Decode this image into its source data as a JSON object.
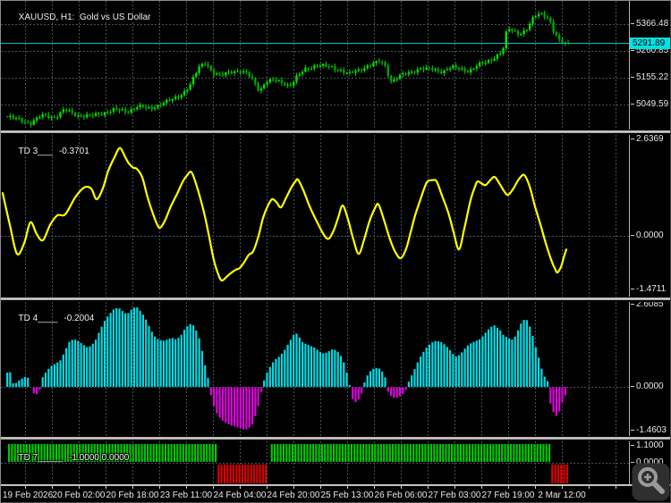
{
  "price_panel": {
    "title": "XAUUSD, H1:  Gold vs US Dollar",
    "current_price": "5291.89"
  },
  "indicators": {
    "td3": {
      "label": "TD 3___",
      "value": "-0.3701"
    },
    "td4": {
      "label": "TD 4____",
      "value": "-0.2004"
    },
    "td7": {
      "label": "TD 7_____",
      "value": "-1.0000 0.0000"
    }
  },
  "colors": {
    "candle_wick": "#00d800",
    "candle_up": "#00e000",
    "candle_down": "#00a400",
    "osc_line": "#ffff00",
    "hist_up": "#00dce4",
    "hist_down": "#e100e1",
    "sig_up": "#00c800",
    "sig_down": "#de0000",
    "price_line": "#00bfbf",
    "current_price_bg": "#00e2e2",
    "scale_text": "#e8e8e8"
  },
  "chart_data": [
    {
      "type": "candlestick",
      "title": "XAUUSD, H1: Gold vs US Dollar",
      "ylabel": "price",
      "y_ticks": [
        5366.48,
        5260.85,
        5155.22,
        5049.59
      ],
      "current_price": 5291.89,
      "x_labels": [
        "19 Feb 2026",
        "20 Feb 02:00",
        "20 Feb 18:00",
        "23 Feb 11:00",
        "24 Feb 04:00",
        "24 Feb 20:00",
        "25 Feb 13:00",
        "26 Feb 06:00",
        "27 Feb 03:00",
        "27 Feb 19:00",
        "2 Mar 12:00"
      ],
      "x_unit": "px",
      "close_path": [
        [
          6,
          5001
        ],
        [
          20,
          4990
        ],
        [
          32,
          4976
        ],
        [
          45,
          5007
        ],
        [
          60,
          5000
        ],
        [
          70,
          5029
        ],
        [
          85,
          5007
        ],
        [
          100,
          5004
        ],
        [
          112,
          5015
        ],
        [
          125,
          5029
        ],
        [
          140,
          5022
        ],
        [
          152,
          5043
        ],
        [
          165,
          5032
        ],
        [
          178,
          5053
        ],
        [
          190,
          5067
        ],
        [
          200,
          5088
        ],
        [
          210,
          5124
        ],
        [
          220,
          5194
        ],
        [
          228,
          5219
        ],
        [
          235,
          5176
        ],
        [
          245,
          5162
        ],
        [
          255,
          5180
        ],
        [
          265,
          5183
        ],
        [
          275,
          5169
        ],
        [
          283,
          5134
        ],
        [
          288,
          5103
        ],
        [
          295,
          5141
        ],
        [
          305,
          5145
        ],
        [
          315,
          5134
        ],
        [
          322,
          5124
        ],
        [
          330,
          5159
        ],
        [
          340,
          5191
        ],
        [
          352,
          5205
        ],
        [
          365,
          5198
        ],
        [
          378,
          5187
        ],
        [
          388,
          5169
        ],
        [
          398,
          5183
        ],
        [
          410,
          5205
        ],
        [
          423,
          5219
        ],
        [
          430,
          5194
        ],
        [
          434,
          5141
        ],
        [
          445,
          5162
        ],
        [
          455,
          5173
        ],
        [
          468,
          5194
        ],
        [
          480,
          5187
        ],
        [
          492,
          5180
        ],
        [
          502,
          5198
        ],
        [
          512,
          5187
        ],
        [
          522,
          5183
        ],
        [
          532,
          5205
        ],
        [
          542,
          5215
        ],
        [
          552,
          5240
        ],
        [
          560,
          5264
        ],
        [
          565,
          5352
        ],
        [
          572,
          5335
        ],
        [
          580,
          5331
        ],
        [
          588,
          5352
        ],
        [
          595,
          5395
        ],
        [
          602,
          5409
        ],
        [
          607,
          5402
        ],
        [
          612,
          5388
        ],
        [
          617,
          5335
        ],
        [
          623,
          5300
        ],
        [
          628,
          5289
        ],
        [
          633,
          5291.89
        ]
      ]
    },
    {
      "type": "line",
      "name": "TD 3___",
      "last_value": -0.3701,
      "y_ticks": [
        2.6369,
        0.0,
        -1.4711
      ],
      "x_unit": "px",
      "points": [
        [
          2,
          1.17
        ],
        [
          10,
          0.3
        ],
        [
          18,
          -0.49
        ],
        [
          26,
          -0.2
        ],
        [
          33,
          0.37
        ],
        [
          40,
          0.05
        ],
        [
          47,
          -0.12
        ],
        [
          55,
          0.3
        ],
        [
          63,
          0.56
        ],
        [
          72,
          0.59
        ],
        [
          83,
          1.05
        ],
        [
          93,
          1.32
        ],
        [
          101,
          1.29
        ],
        [
          107,
          1.0
        ],
        [
          114,
          1.3
        ],
        [
          120,
          1.78
        ],
        [
          127,
          2.15
        ],
        [
          133,
          2.4
        ],
        [
          139,
          2.15
        ],
        [
          143,
          1.98
        ],
        [
          148,
          1.86
        ],
        [
          152,
          1.83
        ],
        [
          158,
          1.6
        ],
        [
          164,
          1.05
        ],
        [
          170,
          0.6
        ],
        [
          174,
          0.35
        ],
        [
          178,
          0.22
        ],
        [
          184,
          0.45
        ],
        [
          190,
          0.81
        ],
        [
          197,
          1.15
        ],
        [
          203,
          1.47
        ],
        [
          208,
          1.65
        ],
        [
          213,
          1.74
        ],
        [
          219,
          1.35
        ],
        [
          227,
          0.64
        ],
        [
          233,
          -0.05
        ],
        [
          238,
          -0.66
        ],
        [
          243,
          -1.05
        ],
        [
          247,
          -1.22
        ],
        [
          253,
          -1.1
        ],
        [
          258,
          -1.0
        ],
        [
          263,
          -0.92
        ],
        [
          267,
          -0.88
        ],
        [
          272,
          -0.72
        ],
        [
          277,
          -0.52
        ],
        [
          282,
          -0.42
        ],
        [
          288,
          0.0
        ],
        [
          293,
          0.49
        ],
        [
          298,
          0.8
        ],
        [
          303,
          1.0
        ],
        [
          308,
          0.92
        ],
        [
          313,
          0.78
        ],
        [
          319,
          1.05
        ],
        [
          325,
          1.34
        ],
        [
          329,
          1.48
        ],
        [
          332,
          1.54
        ],
        [
          338,
          1.25
        ],
        [
          345,
          0.81
        ],
        [
          352,
          0.45
        ],
        [
          360,
          0.07
        ],
        [
          366,
          -0.08
        ],
        [
          372,
          0.15
        ],
        [
          377,
          0.5
        ],
        [
          382,
          0.83
        ],
        [
          388,
          0.45
        ],
        [
          394,
          -0.1
        ],
        [
          400,
          -0.49
        ],
        [
          406,
          -0.1
        ],
        [
          412,
          0.4
        ],
        [
          418,
          0.75
        ],
        [
          422,
          0.86
        ],
        [
          428,
          0.45
        ],
        [
          435,
          -0.1
        ],
        [
          441,
          -0.45
        ],
        [
          447,
          -0.61
        ],
        [
          453,
          -0.35
        ],
        [
          458,
          0.1
        ],
        [
          463,
          0.56
        ],
        [
          469,
          1.0
        ],
        [
          474,
          1.35
        ],
        [
          477,
          1.49
        ],
        [
          482,
          1.52
        ],
        [
          487,
          1.49
        ],
        [
          493,
          1.1
        ],
        [
          500,
          0.64
        ],
        [
          506,
          0.1
        ],
        [
          512,
          -0.37
        ],
        [
          518,
          0.2
        ],
        [
          525,
          0.98
        ],
        [
          530,
          1.35
        ],
        [
          533,
          1.49
        ],
        [
          538,
          1.42
        ],
        [
          542,
          1.39
        ],
        [
          547,
          1.52
        ],
        [
          552,
          1.61
        ],
        [
          558,
          1.4
        ],
        [
          563,
          1.2
        ],
        [
          567,
          1.12
        ],
        [
          573,
          1.3
        ],
        [
          579,
          1.55
        ],
        [
          585,
          1.66
        ],
        [
          591,
          1.35
        ],
        [
          597,
          0.8
        ],
        [
          603,
          0.32
        ],
        [
          609,
          -0.2
        ],
        [
          615,
          -0.65
        ],
        [
          619,
          -0.88
        ],
        [
          622,
          -1.0
        ],
        [
          626,
          -0.85
        ],
        [
          629,
          -0.6
        ],
        [
          632,
          -0.37
        ]
      ]
    },
    {
      "type": "bar",
      "name": "TD 4____",
      "last_value": -0.2004,
      "y_ticks": [
        2.6085,
        0.0,
        -1.4603
      ],
      "x_unit": "px",
      "envelope": [
        [
          6,
          0.45
        ],
        [
          9,
          0.5
        ],
        [
          12,
          0.12
        ],
        [
          15,
          0.1
        ],
        [
          18,
          0.18
        ],
        [
          22,
          0.26
        ],
        [
          26,
          0.32
        ],
        [
          30,
          0.28
        ],
        [
          33,
          -0.1
        ],
        [
          36,
          -0.2
        ],
        [
          39,
          -0.22
        ],
        [
          42,
          -0.12
        ],
        [
          45,
          0.28
        ],
        [
          50,
          0.5
        ],
        [
          55,
          0.66
        ],
        [
          60,
          0.74
        ],
        [
          65,
          0.82
        ],
        [
          70,
          1.1
        ],
        [
          75,
          1.42
        ],
        [
          80,
          1.52
        ],
        [
          85,
          1.46
        ],
        [
          90,
          1.36
        ],
        [
          95,
          1.26
        ],
        [
          100,
          1.3
        ],
        [
          105,
          1.5
        ],
        [
          110,
          1.82
        ],
        [
          115,
          2.1
        ],
        [
          120,
          2.3
        ],
        [
          125,
          2.46
        ],
        [
          130,
          2.52
        ],
        [
          135,
          2.4
        ],
        [
          140,
          2.3
        ],
        [
          145,
          2.46
        ],
        [
          150,
          2.56
        ],
        [
          155,
          2.4
        ],
        [
          160,
          2.2
        ],
        [
          165,
          1.9
        ],
        [
          170,
          1.62
        ],
        [
          175,
          1.5
        ],
        [
          180,
          1.46
        ],
        [
          185,
          1.5
        ],
        [
          190,
          1.56
        ],
        [
          195,
          1.5
        ],
        [
          200,
          1.62
        ],
        [
          205,
          1.86
        ],
        [
          210,
          2.0
        ],
        [
          215,
          1.94
        ],
        [
          220,
          1.6
        ],
        [
          225,
          1.0
        ],
        [
          228,
          0.55
        ],
        [
          231,
          0.22
        ],
        [
          234,
          -0.3
        ],
        [
          238,
          -0.7
        ],
        [
          242,
          -0.92
        ],
        [
          247,
          -1.06
        ],
        [
          252,
          -1.16
        ],
        [
          257,
          -1.22
        ],
        [
          262,
          -1.26
        ],
        [
          267,
          -1.3
        ],
        [
          272,
          -1.36
        ],
        [
          276,
          -1.3
        ],
        [
          280,
          -1.18
        ],
        [
          284,
          -0.85
        ],
        [
          287,
          -0.55
        ],
        [
          290,
          -0.12
        ],
        [
          293,
          0.2
        ],
        [
          297,
          0.5
        ],
        [
          301,
          0.7
        ],
        [
          305,
          0.86
        ],
        [
          310,
          0.96
        ],
        [
          315,
          1.12
        ],
        [
          320,
          1.36
        ],
        [
          325,
          1.6
        ],
        [
          328,
          1.74
        ],
        [
          332,
          1.6
        ],
        [
          336,
          1.42
        ],
        [
          340,
          1.36
        ],
        [
          345,
          1.3
        ],
        [
          350,
          1.24
        ],
        [
          355,
          1.12
        ],
        [
          360,
          1.05
        ],
        [
          365,
          1.12
        ],
        [
          370,
          1.2
        ],
        [
          375,
          1.14
        ],
        [
          380,
          0.94
        ],
        [
          383,
          0.72
        ],
        [
          386,
          0.4
        ],
        [
          388,
          0.18
        ],
        [
          391,
          -0.3
        ],
        [
          394,
          -0.5
        ],
        [
          397,
          -0.44
        ],
        [
          400,
          -0.34
        ],
        [
          403,
          -0.12
        ],
        [
          406,
          0.22
        ],
        [
          410,
          0.44
        ],
        [
          414,
          0.56
        ],
        [
          418,
          0.6
        ],
        [
          422,
          0.58
        ],
        [
          426,
          0.46
        ],
        [
          429,
          0.26
        ],
        [
          432,
          -0.18
        ],
        [
          436,
          -0.3
        ],
        [
          440,
          -0.36
        ],
        [
          444,
          -0.3
        ],
        [
          448,
          -0.22
        ],
        [
          451,
          -0.12
        ],
        [
          455,
          0.18
        ],
        [
          458,
          0.36
        ],
        [
          462,
          0.6
        ],
        [
          466,
          0.86
        ],
        [
          470,
          1.06
        ],
        [
          475,
          1.26
        ],
        [
          480,
          1.4
        ],
        [
          485,
          1.46
        ],
        [
          490,
          1.44
        ],
        [
          495,
          1.34
        ],
        [
          500,
          1.2
        ],
        [
          505,
          1.02
        ],
        [
          508,
          0.96
        ],
        [
          512,
          1.02
        ],
        [
          516,
          1.16
        ],
        [
          520,
          1.3
        ],
        [
          525,
          1.4
        ],
        [
          530,
          1.46
        ],
        [
          535,
          1.52
        ],
        [
          540,
          1.7
        ],
        [
          545,
          1.86
        ],
        [
          550,
          1.96
        ],
        [
          553,
          1.9
        ],
        [
          557,
          1.8
        ],
        [
          560,
          1.66
        ],
        [
          565,
          1.56
        ],
        [
          570,
          1.5
        ],
        [
          573,
          1.56
        ],
        [
          577,
          1.8
        ],
        [
          580,
          2.0
        ],
        [
          583,
          2.12
        ],
        [
          586,
          2.16
        ],
        [
          589,
          2.0
        ],
        [
          592,
          1.76
        ],
        [
          595,
          1.46
        ],
        [
          598,
          1.1
        ],
        [
          601,
          0.84
        ],
        [
          604,
          0.5
        ],
        [
          607,
          0.3
        ],
        [
          610,
          0.18
        ],
        [
          613,
          -0.5
        ],
        [
          616,
          -0.76
        ],
        [
          619,
          -0.92
        ],
        [
          622,
          -0.86
        ],
        [
          625,
          -0.6
        ],
        [
          628,
          -0.32
        ],
        [
          631,
          -0.2
        ]
      ]
    },
    {
      "type": "bar",
      "name": "TD 7_____",
      "last_values": [
        -1.0,
        0.0
      ],
      "y_ticks": [
        1.1,
        0.0
      ],
      "x_unit": "px",
      "segments": [
        {
          "from": 8,
          "to": 241,
          "value": 1
        },
        {
          "from": 242,
          "to": 298,
          "value": -1
        },
        {
          "from": 300,
          "to": 613,
          "value": 1
        },
        {
          "from": 614,
          "to": 633,
          "value": -1
        }
      ]
    }
  ]
}
